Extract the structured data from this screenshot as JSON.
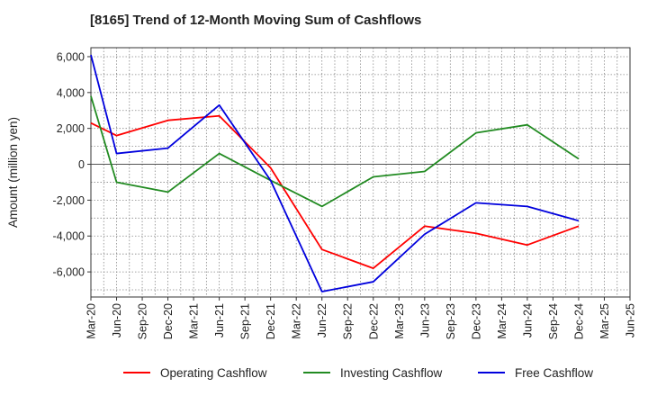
{
  "chart_data": {
    "type": "line",
    "title": "[8165]  Trend of 12-Month Moving Sum of Cashflows",
    "xlabel": "",
    "ylabel": "Amount (million yen)",
    "categories": [
      "Mar-20",
      "Jun-20",
      "Sep-20",
      "Dec-20",
      "Mar-21",
      "Jun-21",
      "Sep-21",
      "Dec-21",
      "Mar-22",
      "Jun-22",
      "Sep-22",
      "Dec-22",
      "Mar-23",
      "Jun-23",
      "Sep-23",
      "Dec-23",
      "Mar-24",
      "Jun-24",
      "Sep-24",
      "Dec-24",
      "Mar-25",
      "Jun-25"
    ],
    "ylim": [
      -7400,
      6500
    ],
    "yticks": [
      6000,
      4000,
      2000,
      0,
      -2000,
      -4000,
      -6000
    ],
    "ytick_labels": [
      "6,000",
      "4,000",
      "2,000",
      "0",
      "-2,000",
      "-4,000",
      "-6,000"
    ],
    "grid": true,
    "legend_position": "bottom",
    "series": [
      {
        "name": "Operating Cashflow",
        "color": "#ff0000",
        "points": [
          {
            "x": "Mar-20",
            "y": 2300
          },
          {
            "x": "Jun-20",
            "y": 1600
          },
          {
            "x": "Dec-20",
            "y": 2450
          },
          {
            "x": "Jun-21",
            "y": 2700
          },
          {
            "x": "Dec-21",
            "y": -200
          },
          {
            "x": "Jun-22",
            "y": -4750
          },
          {
            "x": "Dec-22",
            "y": -5800
          },
          {
            "x": "Jun-23",
            "y": -3450
          },
          {
            "x": "Dec-23",
            "y": -3850
          },
          {
            "x": "Jun-24",
            "y": -4500
          },
          {
            "x": "Dec-24",
            "y": -3450
          }
        ]
      },
      {
        "name": "Investing Cashflow",
        "color": "#228b22",
        "points": [
          {
            "x": "Mar-20",
            "y": 3800
          },
          {
            "x": "Jun-20",
            "y": -1000
          },
          {
            "x": "Dec-20",
            "y": -1550
          },
          {
            "x": "Jun-21",
            "y": 600
          },
          {
            "x": "Dec-21",
            "y": -900
          },
          {
            "x": "Jun-22",
            "y": -2350
          },
          {
            "x": "Dec-22",
            "y": -700
          },
          {
            "x": "Jun-23",
            "y": -400
          },
          {
            "x": "Dec-23",
            "y": 1750
          },
          {
            "x": "Jun-24",
            "y": 2200
          },
          {
            "x": "Dec-24",
            "y": 300
          }
        ]
      },
      {
        "name": "Free Cashflow",
        "color": "#0000dd",
        "points": [
          {
            "x": "Mar-20",
            "y": 6100
          },
          {
            "x": "Jun-20",
            "y": 600
          },
          {
            "x": "Dec-20",
            "y": 900
          },
          {
            "x": "Jun-21",
            "y": 3300
          },
          {
            "x": "Dec-21",
            "y": -900
          },
          {
            "x": "Jun-22",
            "y": -7100
          },
          {
            "x": "Dec-22",
            "y": -6550
          },
          {
            "x": "Jun-23",
            "y": -3900
          },
          {
            "x": "Dec-23",
            "y": -2150
          },
          {
            "x": "Jun-24",
            "y": -2350
          },
          {
            "x": "Dec-24",
            "y": -3150
          }
        ]
      }
    ]
  }
}
